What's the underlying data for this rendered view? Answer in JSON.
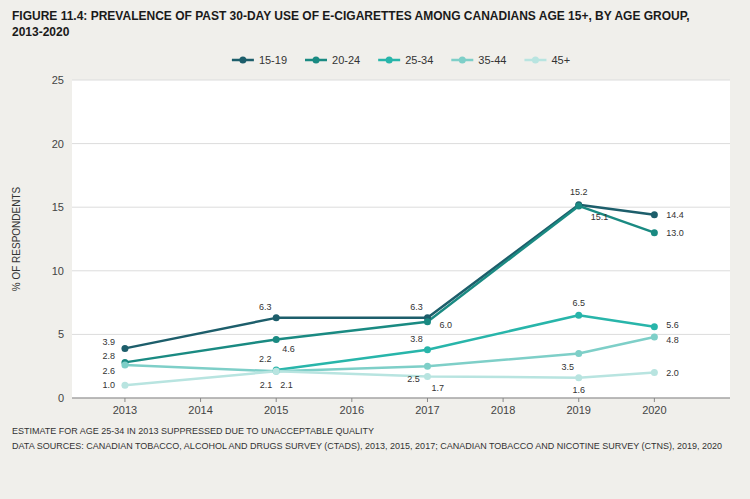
{
  "chart_data": {
    "type": "line",
    "title": "FIGURE 11.4: PREVALENCE OF PAST 30-DAY USE OF E-CIGARETTES AMONG CANADIANS AGE 15+, BY AGE GROUP, 2013-2020",
    "ylabel": "% OF RESPONDENTS",
    "x": [
      2013,
      2015,
      2017,
      2019,
      2020
    ],
    "xlim": [
      2012.3,
      2021
    ],
    "xticks": [
      2013,
      2014,
      2015,
      2016,
      2017,
      2018,
      2019,
      2020
    ],
    "ylim": [
      0,
      25
    ],
    "yticks": [
      0,
      5,
      10,
      15,
      20,
      25
    ],
    "grid": "y",
    "legend": "top",
    "marker": "circle",
    "data_labels": true,
    "series": [
      {
        "name": "15-19",
        "color": "#1d5e6b",
        "values": [
          3.9,
          6.3,
          6.3,
          15.2,
          14.4
        ],
        "value_labels": [
          "3.9",
          "6.3",
          "6.3",
          "15.2",
          "14.4"
        ]
      },
      {
        "name": "20-24",
        "color": "#1a8a82",
        "values": [
          2.8,
          4.6,
          6.0,
          15.1,
          13.0
        ],
        "value_labels": [
          "2.8",
          "4.6",
          "6.0",
          "15.1",
          "13.0"
        ]
      },
      {
        "name": "25-34",
        "color": "#28b5aa",
        "values": [
          null,
          2.2,
          3.8,
          6.5,
          5.6
        ],
        "value_labels": [
          null,
          "2.2",
          "3.8",
          "6.5",
          "5.6"
        ]
      },
      {
        "name": "35-44",
        "color": "#7ecfc8",
        "values": [
          2.6,
          2.1,
          2.5,
          3.5,
          4.8
        ],
        "value_labels": [
          "2.6",
          "2.1",
          "2.5",
          "3.5",
          "4.8"
        ]
      },
      {
        "name": "45+",
        "color": "#b8e4e0",
        "values": [
          1.0,
          2.1,
          1.7,
          1.6,
          2.0
        ],
        "value_labels": [
          "1.0",
          "2.1",
          "1.7",
          "1.6",
          "2.0"
        ]
      }
    ],
    "notes": [
      "ESTIMATE FOR AGE 25-34 IN 2013 SUPPRESSED DUE TO UNACCEPTABLE QUALITY",
      "DATA SOURCES: CANADIAN TOBACCO, ALCOHOL AND DRUGS SURVEY (CTADS), 2013, 2015, 2017; CANADIAN TOBACCO AND NICOTINE SURVEY (CTNS), 2019, 2020"
    ]
  }
}
